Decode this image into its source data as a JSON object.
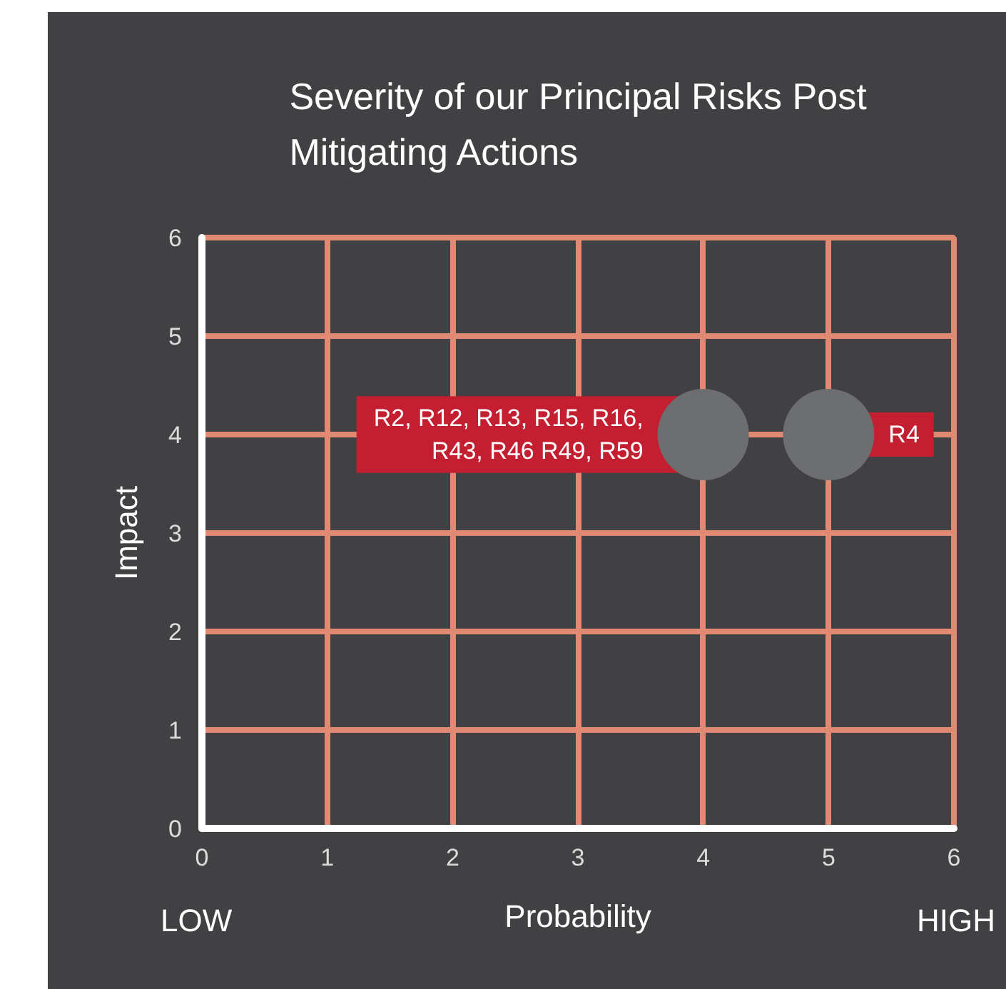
{
  "chart_data": {
    "type": "scatter",
    "title": "Severity of our Principal Risks Post\nMitigating Actions",
    "xlabel": "Probability",
    "ylabel": "Impact",
    "x": [
      4,
      5
    ],
    "series": [
      {
        "color": "#6d6e70",
        "values": [
          4,
          4
        ]
      }
    ],
    "marker": "circle",
    "grid": true,
    "xlim": [
      0,
      6
    ],
    "ylim": [
      0,
      6
    ],
    "xticks": [
      0,
      1,
      2,
      3,
      4,
      5,
      6
    ],
    "yticks": [
      0,
      1,
      2,
      3,
      4,
      5,
      6
    ],
    "annotations": [
      "LOW",
      "HIGH",
      {
        "text": "R2, R12, R13, R15, R16,\nR43, R46 R49, R59",
        "x": 4,
        "y": 4
      },
      {
        "text": "R4",
        "x": 5,
        "y": 4
      }
    ]
  }
}
